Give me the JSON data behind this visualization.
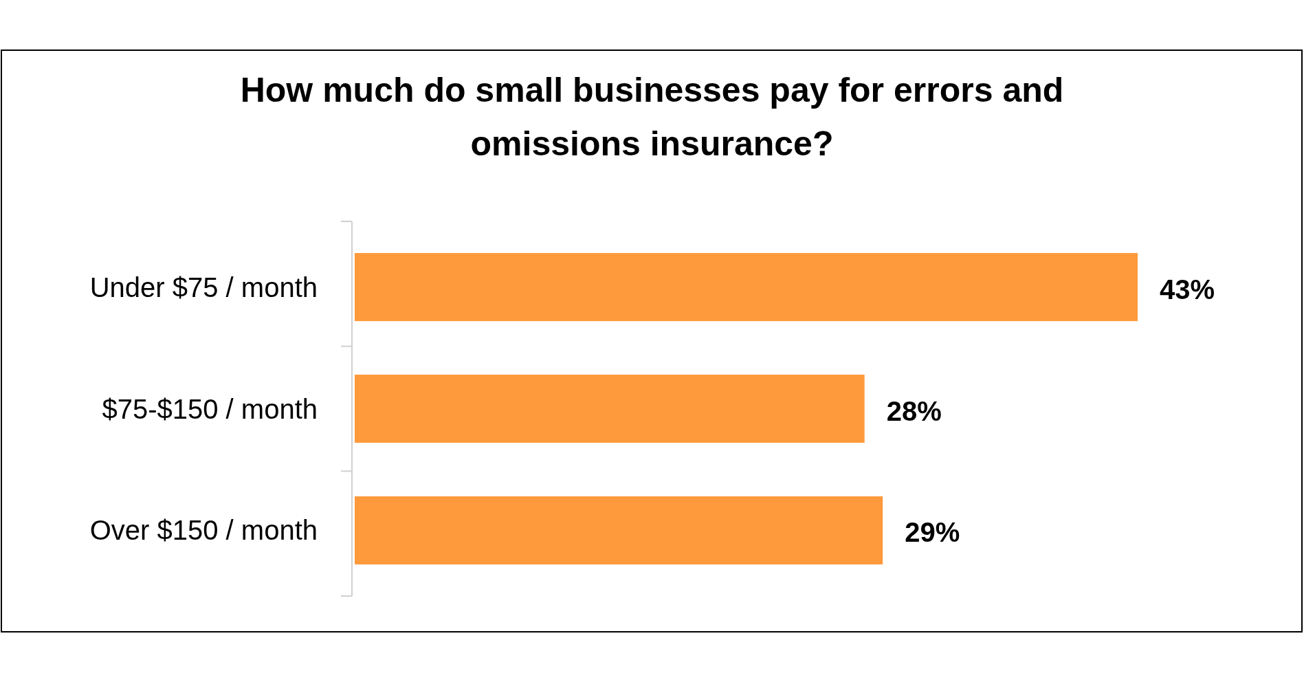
{
  "chart_data": {
    "type": "bar",
    "orientation": "horizontal",
    "title": "How much do small businesses pay for errors and omissions insurance?",
    "categories": [
      "Under $75 / month",
      "$75-$150 / month",
      "Over $150 / month"
    ],
    "values": [
      43,
      28,
      29
    ],
    "color": "#ff9a3c",
    "value_labels": [
      "43%",
      "28%",
      "29%"
    ]
  }
}
